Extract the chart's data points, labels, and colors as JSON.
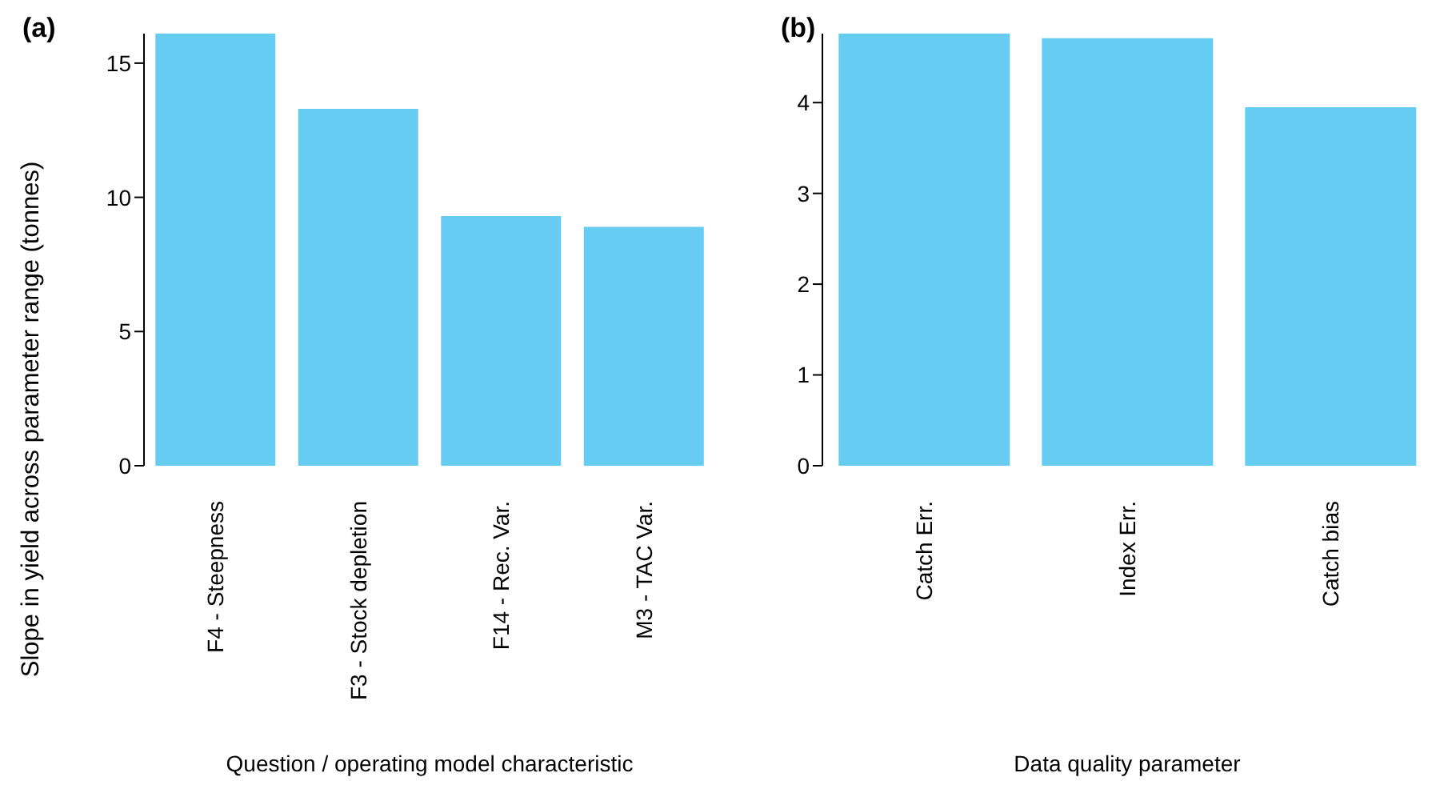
{
  "chart_data": [
    {
      "type": "bar",
      "title": "(a)",
      "xlabel": "Question / operating model characteristic",
      "ylabel": "Slope in yield across parameter range (tonnes)",
      "categories": [
        "F4 - Steepness",
        "F3 - Stock depletion",
        "F14 - Rec. Var.",
        "M3 - TAC Var."
      ],
      "values": [
        16.1,
        13.3,
        9.3,
        8.9
      ],
      "color": "#66ccf2",
      "ylim": [
        0,
        16.1
      ],
      "yticks": [
        0,
        5,
        10,
        15
      ]
    },
    {
      "type": "bar",
      "title": "(b)",
      "xlabel": "Data quality parameter",
      "categories": [
        "Catch Err.",
        "Index Err.",
        "Catch bias"
      ],
      "values": [
        4.76,
        4.71,
        3.95
      ],
      "color": "#66ccf2",
      "ylim": [
        0,
        4.76
      ],
      "yticks": [
        0,
        1,
        2,
        3,
        4
      ]
    }
  ]
}
